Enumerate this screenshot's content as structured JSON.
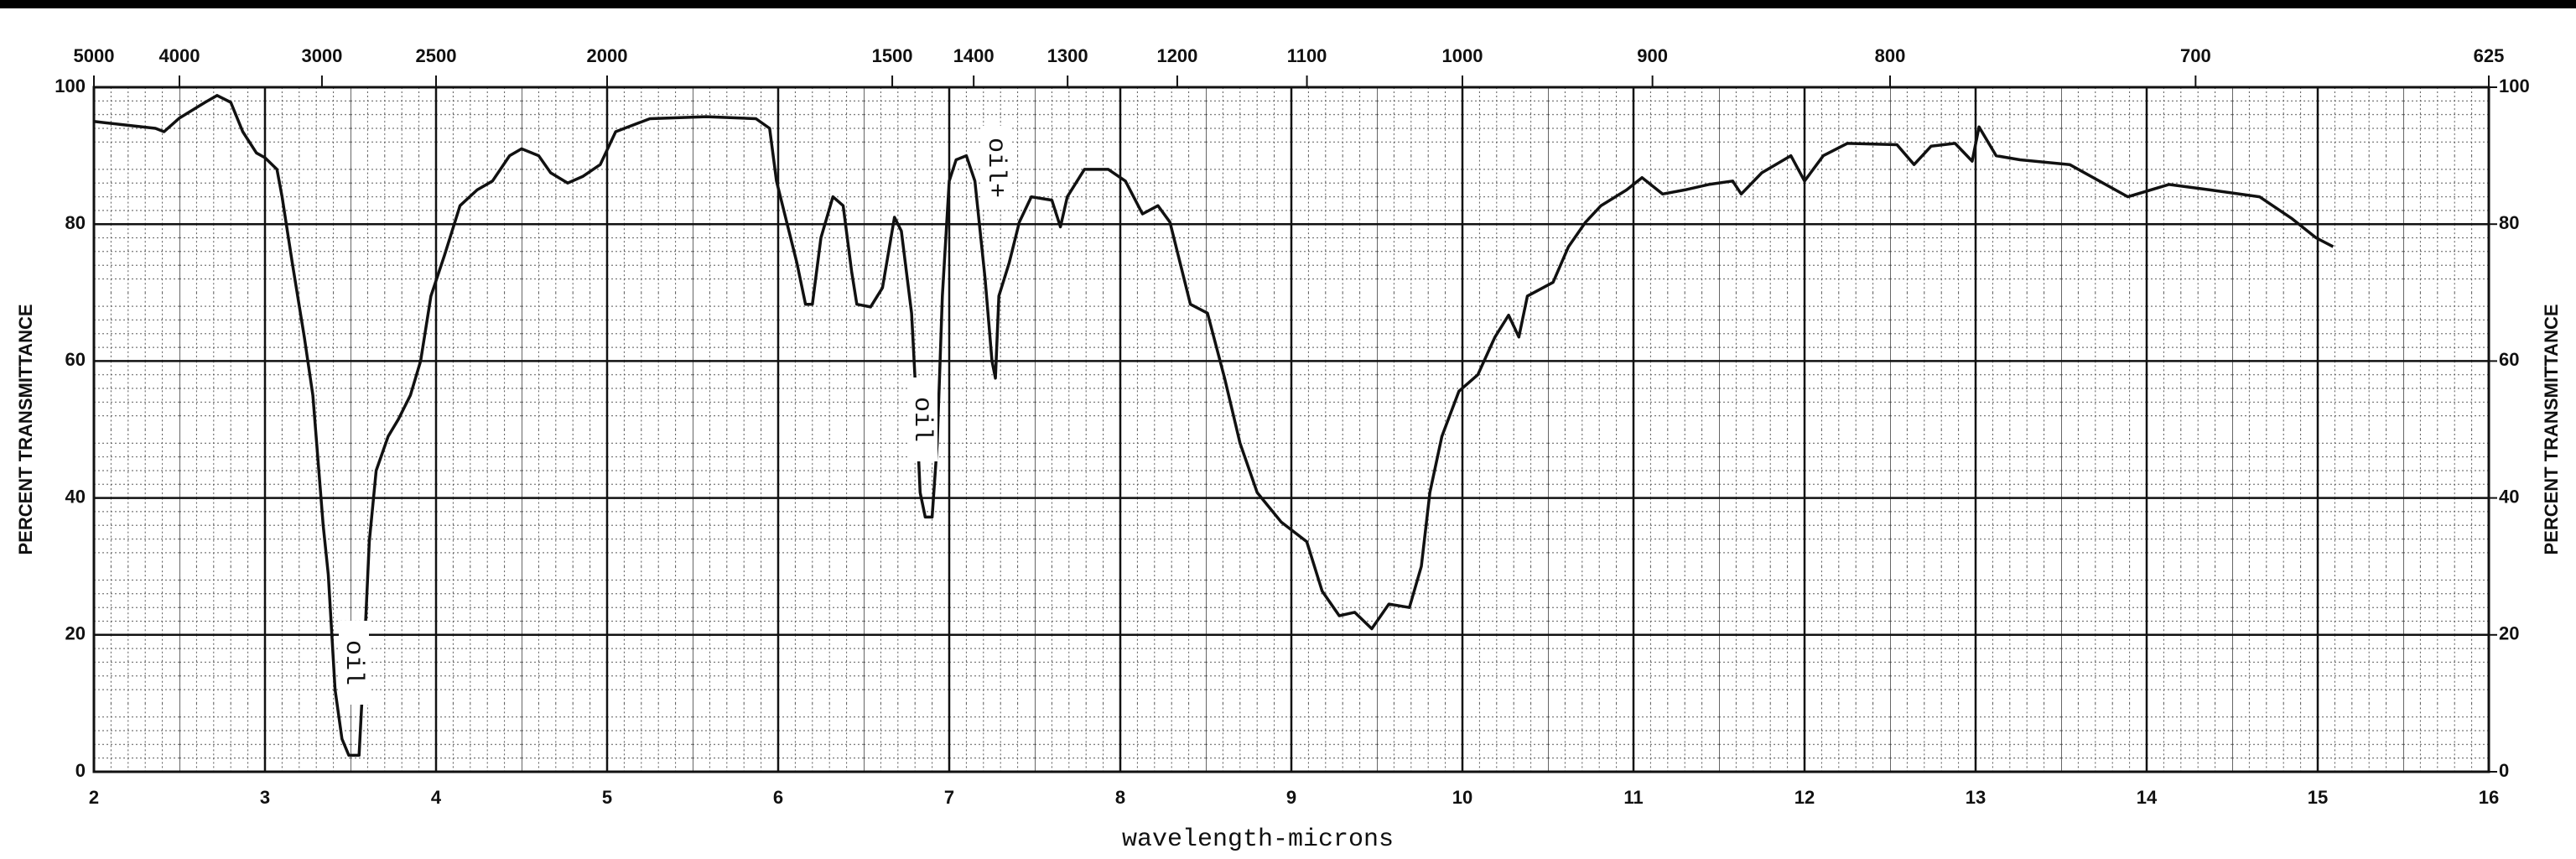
{
  "chart_data": {
    "type": "line",
    "xlabel": "wavelength-microns",
    "ylabel": "PERCENT TRANSMITTANCE",
    "y2label": "PERCENT TRANSMITTANCE",
    "xlim": [
      2,
      16
    ],
    "ylim": [
      0,
      100
    ],
    "y2lim": [
      0,
      100
    ],
    "xticks": [
      2,
      3,
      4,
      5,
      6,
      7,
      8,
      9,
      10,
      11,
      12,
      13,
      14,
      15,
      16
    ],
    "yticks": [
      0,
      20,
      40,
      60,
      80,
      100
    ],
    "y2ticks": [
      0,
      20,
      40,
      60,
      80,
      100
    ],
    "x2ticks": [
      {
        "value": 2,
        "label": "5000"
      },
      {
        "value": 2.5,
        "label": "4000"
      },
      {
        "value": 3.333,
        "label": "3000"
      },
      {
        "value": 4,
        "label": "2500"
      },
      {
        "value": 5,
        "label": "2000"
      },
      {
        "value": 6.667,
        "label": "1500"
      },
      {
        "value": 7.143,
        "label": "1400"
      },
      {
        "value": 7.692,
        "label": "1300"
      },
      {
        "value": 8.333,
        "label": "1200"
      },
      {
        "value": 9.091,
        "label": "1100"
      },
      {
        "value": 10,
        "label": "1000"
      },
      {
        "value": 11.111,
        "label": "900"
      },
      {
        "value": 12.5,
        "label": "800"
      },
      {
        "value": 14.286,
        "label": "700"
      },
      {
        "value": 16,
        "label": "625"
      }
    ],
    "grid": true,
    "annotations": [
      "oil",
      "oil",
      "oil+"
    ],
    "series": [
      {
        "color": "#111111",
        "x": [
          2.0,
          2.36,
          2.41,
          2.5,
          2.65,
          2.72,
          2.8,
          2.87,
          2.95,
          3.0,
          3.07,
          3.1,
          3.16,
          3.23,
          3.28,
          3.34,
          3.37,
          3.41,
          3.45,
          3.49,
          3.55,
          3.57,
          3.61,
          3.65,
          3.72,
          3.78,
          3.85,
          3.91,
          3.97,
          4.05,
          4.14,
          4.24,
          4.33,
          4.43,
          4.5,
          4.6,
          4.67,
          4.77,
          4.86,
          4.96,
          5.05,
          5.25,
          5.58,
          5.87,
          5.95,
          5.99,
          6.05,
          6.11,
          6.16,
          6.2,
          6.25,
          6.32,
          6.38,
          6.43,
          6.46,
          6.54,
          6.61,
          6.68,
          6.72,
          6.78,
          6.8,
          6.83,
          6.86,
          6.9,
          6.93,
          6.96,
          7.0,
          7.04,
          7.1,
          7.15,
          7.21,
          7.25,
          7.27,
          7.29,
          7.35,
          7.41,
          7.48,
          7.6,
          7.65,
          7.69,
          7.79,
          7.93,
          8.03,
          8.13,
          8.22,
          8.29,
          8.35,
          8.41,
          8.51,
          8.61,
          8.7,
          8.8,
          8.94,
          9.09,
          9.18,
          9.28,
          9.37,
          9.47,
          9.57,
          9.69,
          9.76,
          9.81,
          9.88,
          9.98,
          10.09,
          10.19,
          10.27,
          10.33,
          10.38,
          10.53,
          10.62,
          10.72,
          10.81,
          10.96,
          11.05,
          11.17,
          11.3,
          11.44,
          11.58,
          11.63,
          11.75,
          11.92,
          12.0,
          12.11,
          12.25,
          12.54,
          12.64,
          12.74,
          12.88,
          12.98,
          13.02,
          13.12,
          13.26,
          13.55,
          13.89,
          14.13,
          14.37,
          14.66,
          14.85,
          14.99,
          15.09
        ],
        "values": [
          95,
          94,
          93.5,
          95.5,
          97.8,
          98.8,
          97.8,
          93.5,
          90.4,
          89.7,
          88,
          84,
          74.3,
          63.5,
          55,
          36,
          28.8,
          12,
          4.8,
          2.4,
          2.4,
          12,
          33.6,
          44,
          49,
          51.5,
          55,
          60,
          69.5,
          75.5,
          82.7,
          85,
          86.3,
          90,
          91,
          90,
          87.5,
          86,
          87,
          88.7,
          93.5,
          95.4,
          95.7,
          95.4,
          94,
          86.3,
          80.3,
          74.3,
          68.3,
          68.3,
          78,
          84,
          82.7,
          73,
          68.3,
          67.9,
          70.7,
          81,
          79,
          67,
          57.5,
          40.8,
          37.2,
          37.2,
          48,
          69.5,
          86.3,
          89.4,
          90,
          86.3,
          72,
          60,
          57.5,
          69.5,
          74.3,
          80.3,
          84,
          83.5,
          79.6,
          84,
          88,
          88,
          86.3,
          81.5,
          82.7,
          80.3,
          74.3,
          68.3,
          67,
          57.5,
          48,
          40.8,
          36.5,
          33.6,
          26.4,
          22.8,
          23.3,
          20.9,
          24.5,
          24,
          30,
          40.8,
          49,
          55.6,
          58,
          63.5,
          66.7,
          63.5,
          69.5,
          71.5,
          76.7,
          80.3,
          82.7,
          85,
          86.8,
          84.4,
          85,
          85.8,
          86.3,
          84.4,
          87.5,
          90,
          86.3,
          90,
          91.8,
          91.6,
          88.7,
          91.4,
          91.8,
          89.2,
          94.2,
          90,
          89.4,
          88.7,
          84,
          85.8,
          85,
          84,
          80.8,
          78,
          76.7
        ]
      }
    ]
  }
}
